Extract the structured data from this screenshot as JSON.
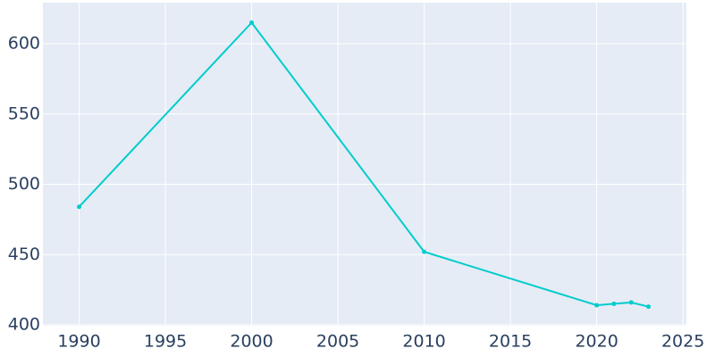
{
  "chart_data": {
    "type": "line",
    "x": [
      1990,
      2000,
      2010,
      2020,
      2021,
      2022,
      2023
    ],
    "series": [
      {
        "color": "#00cccc",
        "values": [
          484,
          615,
          452,
          414,
          415,
          416,
          413
        ]
      }
    ],
    "xlim": [
      1987.9,
      2025.2
    ],
    "xticks": [
      1990,
      1995,
      2000,
      2005,
      2010,
      2015,
      2020,
      2025
    ],
    "ylim": [
      399.4,
      629.2
    ],
    "yticks": [
      400,
      450,
      500,
      550,
      600
    ],
    "grid": true
  }
}
